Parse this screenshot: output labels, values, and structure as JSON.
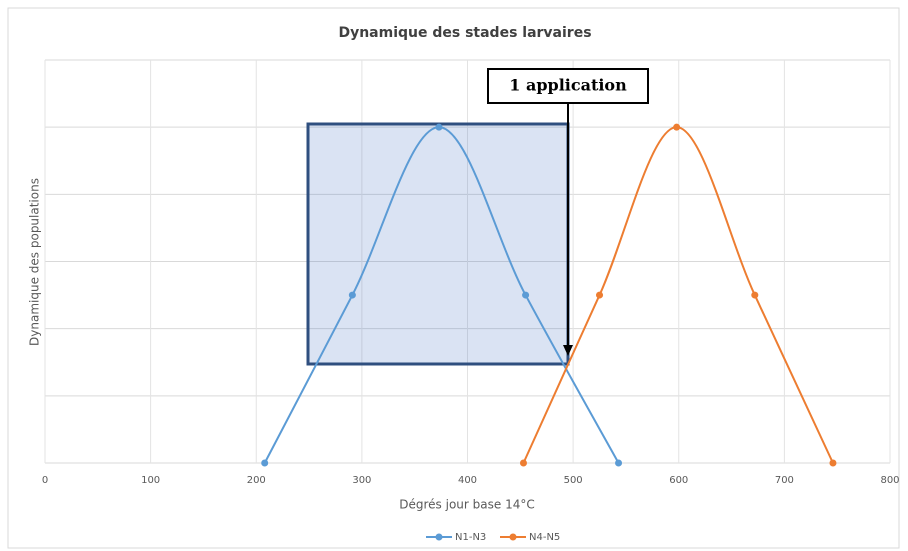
{
  "chart_data": {
    "type": "line",
    "title": "Dynamique  des stades larvaires",
    "x_label": "Dégrés jour base 14°C",
    "y_label": "Dynamique des populations",
    "annotation": "1 application",
    "xlim": [
      0,
      800
    ],
    "xticks": [
      0,
      100,
      200,
      300,
      400,
      500,
      600,
      700,
      800
    ],
    "ylim": [
      0,
      6
    ],
    "yticks": [
      0,
      1,
      2,
      3,
      4,
      5,
      6
    ],
    "grid": true,
    "smooth": true,
    "legend": "bottom",
    "series": [
      {
        "name": "N1-N3",
        "color": "#5b9bd5",
        "x": [
          208,
          291,
          373,
          455,
          543
        ],
        "values": [
          0,
          2.5,
          5,
          2.5,
          0
        ]
      },
      {
        "name": "N4-N5",
        "color": "#ed7d31",
        "x": [
          453,
          525,
          598,
          672,
          746
        ],
        "values": [
          0,
          2.5,
          5,
          2.5,
          0
        ]
      }
    ]
  }
}
